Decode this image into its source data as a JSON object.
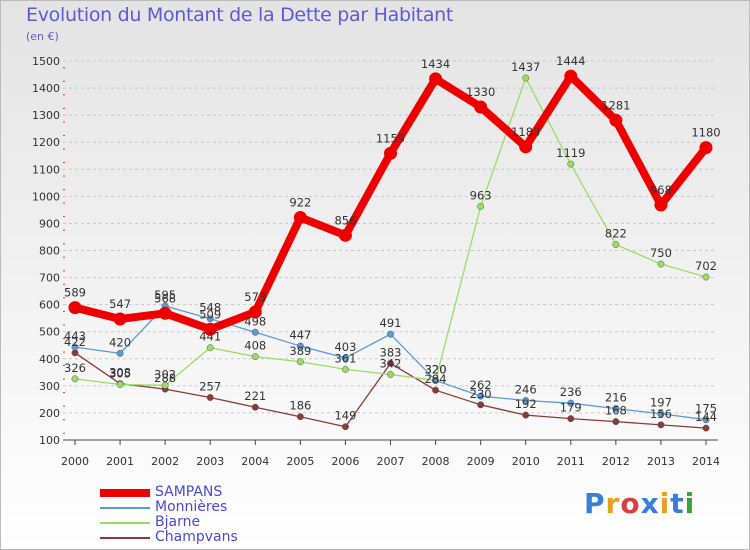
{
  "title": "Evolution du Montant de la Dette par Habitant",
  "subtitle": "(en €)",
  "logo": {
    "text": "Proxiti",
    "colors": [
      "#3a7ed8",
      "#e8a020",
      "#d84040",
      "#3a7ed8",
      "#e8a020",
      "#3a7ed8",
      "#3aa040"
    ]
  },
  "chart_data": {
    "type": "line",
    "x": [
      "2000",
      "2001",
      "2002",
      "2003",
      "2004",
      "2005",
      "2006",
      "2007",
      "2008",
      "2009",
      "2010",
      "2011",
      "2012",
      "2013",
      "2014"
    ],
    "y_ticks": [
      "100",
      "200",
      "300",
      "400",
      "500",
      "600",
      "700",
      "800",
      "900",
      "1000",
      "1100",
      "1200",
      "1300",
      "1400",
      "1500"
    ],
    "ylim": [
      100,
      1500
    ],
    "grid": "horizontal dashed",
    "legend_position": "bottom-left",
    "series": [
      {
        "name": "SAMPANS",
        "color": "#ee0000",
        "values": [
          589,
          547,
          568,
          509,
          573,
          922,
          856,
          1159,
          1434,
          1330,
          1183,
          1444,
          1281,
          968,
          1180
        ],
        "labels": [
          "589",
          "547",
          "568",
          "509",
          "573",
          "922",
          "856",
          "1159",
          "1434",
          "1330",
          "1183",
          "1444",
          "1281",
          "968",
          "1180"
        ]
      },
      {
        "name": "Monnières",
        "color": "#5b9bd5",
        "values": [
          443,
          420,
          595,
          548,
          498,
          447,
          403,
          491,
          320,
          262,
          246,
          236,
          216,
          197,
          175
        ],
        "labels": [
          "443",
          "420",
          "595",
          "548",
          "498",
          "447",
          "403",
          "491",
          "320",
          "262",
          "246",
          "236",
          "216",
          "197",
          "175"
        ]
      },
      {
        "name": "Bjarne",
        "color": "#99dd66",
        "values": [
          326,
          305,
          302,
          441,
          408,
          389,
          361,
          342,
          320,
          963,
          1437,
          1119,
          822,
          750,
          702
        ],
        "labels": [
          "326",
          "305",
          "302",
          "441",
          "408",
          "389",
          "361",
          "342",
          "320",
          "963",
          "1437",
          "1119",
          "822",
          "750",
          "702"
        ]
      },
      {
        "name": "Champvans",
        "color": "#8b3a3a",
        "values": [
          422,
          308,
          288,
          257,
          221,
          186,
          149,
          383,
          284,
          230,
          192,
          179,
          168,
          156,
          144
        ],
        "labels": [
          "422",
          "308",
          "288",
          "257",
          "221",
          "186",
          "149",
          "383",
          "284",
          "230",
          "192",
          "179",
          "168",
          "156",
          "144"
        ]
      }
    ]
  }
}
